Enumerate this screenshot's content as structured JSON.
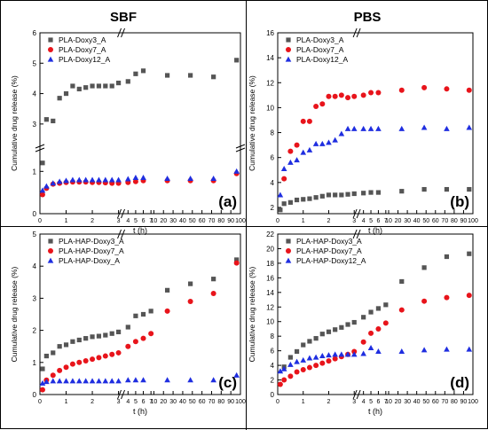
{
  "headers": {
    "left": "SBF",
    "right": "PBS"
  },
  "chart_data": [
    {
      "panel": "(a)",
      "type": "scatter",
      "broken_axes": true,
      "xlabel": "t (h)",
      "ylabel": "Cumulative drug release (%)",
      "x_ticks": [
        0,
        1,
        2,
        3,
        4,
        5,
        6,
        7,
        10,
        20,
        30,
        40,
        50,
        60,
        70,
        80,
        90,
        100
      ],
      "y_ticks_lower": [
        0,
        1
      ],
      "y_ticks_upper": [
        3,
        4,
        5,
        6
      ],
      "legend_position": "top-left",
      "series": [
        {
          "name": "PLA-Doxy3_A",
          "marker": "square",
          "color": "#555555",
          "x": [
            0.1,
            0.25,
            0.5,
            0.75,
            1,
            1.25,
            1.5,
            1.75,
            2,
            2.25,
            2.5,
            2.75,
            3,
            4,
            5,
            6,
            24,
            48,
            72,
            96
          ],
          "y": [
            1.2,
            3.15,
            3.1,
            3.85,
            4.0,
            4.25,
            4.15,
            4.2,
            4.25,
            4.25,
            4.25,
            4.25,
            4.35,
            4.4,
            4.65,
            4.75,
            4.6,
            4.6,
            4.55,
            5.1
          ]
        },
        {
          "name": "PLA-Doxy7_A",
          "marker": "circle",
          "color": "#e8141b",
          "x": [
            0.1,
            0.25,
            0.5,
            0.75,
            1,
            1.25,
            1.5,
            1.75,
            2,
            2.25,
            2.5,
            2.75,
            3,
            4,
            5,
            6,
            24,
            48,
            72,
            96
          ],
          "y": [
            0.45,
            0.6,
            0.7,
            0.72,
            0.74,
            0.75,
            0.75,
            0.75,
            0.74,
            0.74,
            0.73,
            0.72,
            0.72,
            0.74,
            0.76,
            0.78,
            0.78,
            0.78,
            0.78,
            0.95
          ]
        },
        {
          "name": "PLA-Doxy12_A",
          "marker": "triangle",
          "color": "#1f2ee0",
          "x": [
            0.1,
            0.25,
            0.5,
            0.75,
            1,
            1.25,
            1.5,
            1.75,
            2,
            2.25,
            2.5,
            2.75,
            3,
            4,
            5,
            6,
            24,
            48,
            72,
            96
          ],
          "y": [
            0.55,
            0.65,
            0.72,
            0.76,
            0.78,
            0.8,
            0.8,
            0.8,
            0.8,
            0.8,
            0.8,
            0.8,
            0.8,
            0.82,
            0.85,
            0.85,
            0.83,
            0.83,
            0.83,
            1.0
          ]
        }
      ]
    },
    {
      "panel": "(b)",
      "type": "scatter",
      "broken_axes": true,
      "xlabel": "t (h)",
      "ylabel": "Cumulative drug release (%)",
      "x_ticks": [
        0,
        1,
        2,
        3,
        4,
        5,
        6,
        7,
        10,
        20,
        30,
        40,
        50,
        60,
        70,
        80,
        90,
        100
      ],
      "y_ticks": [
        2,
        4,
        6,
        8,
        10,
        12,
        14,
        16
      ],
      "ylim": [
        1.5,
        16
      ],
      "legend_position": "top-left",
      "series": [
        {
          "name": "PLA-Doxy3_A",
          "marker": "square",
          "color": "#555555",
          "x": [
            0.1,
            0.25,
            0.5,
            0.75,
            1,
            1.25,
            1.5,
            1.75,
            2,
            2.25,
            2.5,
            2.75,
            3,
            4,
            5,
            6,
            24,
            48,
            72,
            96
          ],
          "y": [
            1.8,
            2.3,
            2.4,
            2.6,
            2.65,
            2.7,
            2.8,
            2.9,
            3.0,
            3.0,
            3.0,
            3.05,
            3.1,
            3.15,
            3.2,
            3.2,
            3.3,
            3.45,
            3.45,
            3.45
          ]
        },
        {
          "name": "PLA-Doxy7_A",
          "marker": "circle",
          "color": "#e8141b",
          "x": [
            0.25,
            0.5,
            0.75,
            1,
            1.25,
            1.5,
            1.75,
            2,
            2.25,
            2.5,
            2.75,
            3,
            4,
            5,
            6,
            24,
            48,
            72,
            96
          ],
          "y": [
            4.3,
            6.5,
            7.0,
            8.9,
            8.9,
            10.1,
            10.3,
            10.9,
            10.9,
            11.0,
            10.8,
            10.9,
            11.0,
            11.2,
            11.2,
            11.4,
            11.6,
            11.5,
            11.4
          ]
        },
        {
          "name": "PLA-Doxy12_A",
          "marker": "triangle",
          "color": "#1f2ee0",
          "x": [
            0.1,
            0.25,
            0.5,
            0.75,
            1,
            1.25,
            1.5,
            1.75,
            2,
            2.25,
            2.5,
            2.75,
            3,
            4,
            5,
            6,
            24,
            48,
            72,
            96
          ],
          "y": [
            3.0,
            5.1,
            5.6,
            5.8,
            6.4,
            6.6,
            7.1,
            7.1,
            7.2,
            7.4,
            7.9,
            8.3,
            8.3,
            8.3,
            8.3,
            8.3,
            8.3,
            8.4,
            8.3,
            8.4
          ]
        }
      ]
    },
    {
      "panel": "(c)",
      "type": "scatter",
      "broken_axes": true,
      "xlabel": "t (h)",
      "ylabel": "Cumulative drug release (%)",
      "x_ticks": [
        0,
        1,
        2,
        3,
        4,
        5,
        6,
        7,
        10,
        20,
        30,
        40,
        50,
        60,
        70,
        80,
        90,
        100
      ],
      "y_ticks": [
        0,
        1,
        2,
        3,
        4,
        5
      ],
      "ylim": [
        0,
        5
      ],
      "legend_position": "top-left",
      "series": [
        {
          "name": "PLA-HAP-Doxy3_A",
          "marker": "square",
          "color": "#555555",
          "x": [
            0.1,
            0.25,
            0.5,
            0.75,
            1,
            1.25,
            1.5,
            1.75,
            2,
            2.25,
            2.5,
            2.75,
            3,
            4,
            5,
            6,
            7,
            24,
            48,
            72,
            96
          ],
          "y": [
            0.8,
            1.2,
            1.3,
            1.5,
            1.55,
            1.65,
            1.7,
            1.75,
            1.8,
            1.82,
            1.85,
            1.9,
            1.95,
            2.1,
            2.45,
            2.5,
            2.6,
            3.25,
            3.45,
            3.6,
            4.2
          ]
        },
        {
          "name": "PLA-HAP-Doxy7_A",
          "marker": "circle",
          "color": "#e8141b",
          "x": [
            0.1,
            0.25,
            0.5,
            0.75,
            1,
            1.25,
            1.5,
            1.75,
            2,
            2.25,
            2.5,
            2.75,
            3,
            4,
            5,
            6,
            7,
            24,
            48,
            72,
            96
          ],
          "y": [
            0.15,
            0.45,
            0.6,
            0.75,
            0.85,
            0.95,
            1.0,
            1.05,
            1.1,
            1.15,
            1.2,
            1.25,
            1.3,
            1.5,
            1.65,
            1.75,
            1.9,
            2.6,
            2.9,
            3.15,
            4.1
          ]
        },
        {
          "name": "PLA-HAP-Doxy_A",
          "marker": "triangle",
          "color": "#1f2ee0",
          "x": [
            0.1,
            0.25,
            0.5,
            0.75,
            1,
            1.25,
            1.5,
            1.75,
            2,
            2.25,
            2.5,
            2.75,
            3,
            4,
            5,
            6,
            24,
            48,
            72,
            96
          ],
          "y": [
            0.35,
            0.4,
            0.42,
            0.42,
            0.42,
            0.42,
            0.42,
            0.42,
            0.42,
            0.42,
            0.42,
            0.42,
            0.42,
            0.45,
            0.45,
            0.45,
            0.45,
            0.45,
            0.45,
            0.6
          ]
        }
      ]
    },
    {
      "panel": "(d)",
      "type": "scatter",
      "broken_axes": true,
      "xlabel": "t (h)",
      "ylabel": "Cumulative drug release (%)",
      "x_ticks": [
        0,
        1,
        2,
        3,
        4,
        5,
        6,
        7,
        10,
        20,
        30,
        40,
        50,
        60,
        70,
        80,
        90,
        100
      ],
      "y_ticks": [
        0,
        2,
        4,
        6,
        8,
        10,
        12,
        14,
        16,
        18,
        20,
        22
      ],
      "ylim": [
        0,
        22
      ],
      "legend_position": "top-left",
      "series": [
        {
          "name": "PLA-HAP-Doxy3_A",
          "marker": "square",
          "color": "#555555",
          "x": [
            0.25,
            0.5,
            0.75,
            1,
            1.25,
            1.5,
            1.75,
            2,
            2.25,
            2.5,
            2.75,
            3,
            4,
            5,
            6,
            7,
            24,
            48,
            72,
            96
          ],
          "y": [
            3.8,
            5.1,
            5.9,
            6.8,
            7.3,
            7.7,
            8.3,
            8.6,
            8.9,
            9.2,
            9.6,
            9.9,
            10.6,
            11.3,
            11.8,
            12.3,
            15.5,
            17.4,
            18.9,
            19.3
          ]
        },
        {
          "name": "PLA-HAP-Doxy7_A",
          "marker": "circle",
          "color": "#e8141b",
          "x": [
            0.1,
            0.25,
            0.5,
            0.75,
            1,
            1.25,
            1.5,
            1.75,
            2,
            2.25,
            2.5,
            2.75,
            3,
            4,
            5,
            6,
            7,
            24,
            48,
            72,
            96
          ],
          "y": [
            1.4,
            2.0,
            2.5,
            3.1,
            3.4,
            3.7,
            4.0,
            4.3,
            4.6,
            4.9,
            5.2,
            5.5,
            5.9,
            7.2,
            8.4,
            9.0,
            9.8,
            11.6,
            12.8,
            13.3,
            13.6
          ]
        },
        {
          "name": "PLA-HAP-Doxy12_A",
          "marker": "triangle",
          "color": "#1f2ee0",
          "x": [
            0.1,
            0.25,
            0.5,
            0.75,
            1,
            1.25,
            1.5,
            1.75,
            2,
            2.25,
            2.5,
            2.75,
            3,
            4,
            5,
            6,
            24,
            48,
            72,
            96
          ],
          "y": [
            3.2,
            3.5,
            4.1,
            4.5,
            4.7,
            5.0,
            5.1,
            5.3,
            5.4,
            5.5,
            5.5,
            5.5,
            5.5,
            5.6,
            6.4,
            5.9,
            5.9,
            6.1,
            6.2,
            6.2
          ]
        }
      ]
    }
  ]
}
